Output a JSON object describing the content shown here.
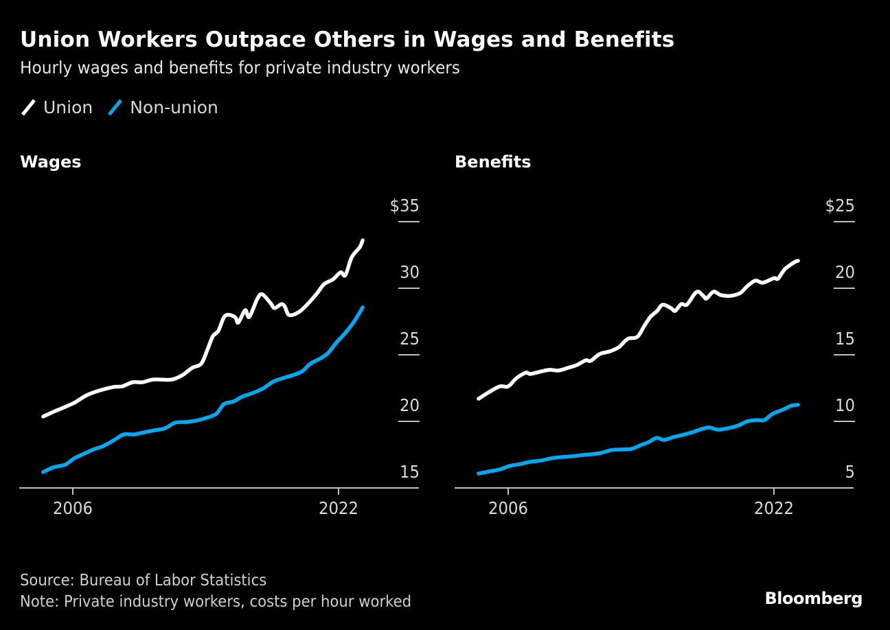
{
  "header": {
    "title": "Union Workers Outpace Others in Wages and Benefits",
    "subtitle": "Hourly wages and benefits for private industry workers"
  },
  "legend": [
    {
      "label": "Union",
      "color": "#ffffff"
    },
    {
      "label": "Non-union",
      "color": "#00a8f0"
    }
  ],
  "footer": {
    "source": "Source: Bureau of Labor Statistics",
    "note": "Note: Private industry workers, costs per hour worked",
    "brand": "Bloomberg"
  },
  "chart_data": [
    {
      "type": "line",
      "title": "Wages",
      "xlabel": "",
      "ylabel": "",
      "x_ticks": [
        2006,
        2022
      ],
      "x_tick_labels": [
        "2006",
        "2022"
      ],
      "xlim": [
        2002.8,
        2026.0
      ],
      "ylim": [
        15,
        35
      ],
      "y_ticks": [
        15,
        20,
        25,
        30,
        35
      ],
      "y_tick_labels": [
        "15",
        "20",
        "25",
        "30",
        "$35"
      ],
      "grid": false,
      "y_axis_position": "right",
      "series": [
        {
          "name": "Union",
          "color": "#ffffff",
          "x": [
            2004.22,
            2004.84,
            2005.34,
            2006.08,
            2006.83,
            2007.61,
            2008.44,
            2008.98,
            2009.6,
            2010.18,
            2010.8,
            2011.37,
            2011.95,
            2012.57,
            2013.19,
            2013.73,
            2014.1,
            2014.43,
            2014.76,
            2015.18,
            2015.76,
            2015.96,
            2016.38,
            2016.62,
            2017.12,
            2017.41,
            2017.91,
            2018.15,
            2018.57,
            2018.77,
            2019.02,
            2019.6,
            2020.14,
            2020.72,
            2021.13,
            2021.67,
            2022.12,
            2022.41,
            2022.79,
            2023.28,
            2023.45
          ],
          "values": [
            20.36,
            20.72,
            20.98,
            21.39,
            21.96,
            22.32,
            22.58,
            22.63,
            22.94,
            22.94,
            23.14,
            23.14,
            23.14,
            23.45,
            24.02,
            24.33,
            25.36,
            26.39,
            26.8,
            27.94,
            27.84,
            27.42,
            28.35,
            27.84,
            29.23,
            29.54,
            28.87,
            28.51,
            28.81,
            28.61,
            27.99,
            28.2,
            28.81,
            29.64,
            30.31,
            30.67,
            31.19,
            30.98,
            32.32,
            33.09,
            33.61
          ]
        },
        {
          "name": "Non-union",
          "color": "#00a8f0",
          "x": [
            2004.22,
            2004.84,
            2005.55,
            2006.08,
            2006.7,
            2007.24,
            2007.82,
            2008.44,
            2009.06,
            2009.68,
            2010.3,
            2010.92,
            2011.54,
            2012.16,
            2012.78,
            2013.4,
            2014.02,
            2014.64,
            2015.09,
            2015.67,
            2016.21,
            2016.79,
            2017.45,
            2018.07,
            2018.65,
            2019.19,
            2019.81,
            2020.3,
            2020.92,
            2021.38,
            2021.88,
            2022.41,
            2022.95,
            2023.45
          ],
          "values": [
            16.19,
            16.55,
            16.75,
            17.22,
            17.58,
            17.89,
            18.14,
            18.56,
            19.02,
            19.02,
            19.18,
            19.33,
            19.48,
            19.9,
            19.95,
            20.05,
            20.26,
            20.57,
            21.29,
            21.49,
            21.86,
            22.11,
            22.47,
            22.99,
            23.25,
            23.45,
            23.76,
            24.33,
            24.74,
            25.15,
            25.93,
            26.65,
            27.53,
            28.56
          ]
        }
      ]
    },
    {
      "type": "line",
      "title": "Benefits",
      "xlabel": "",
      "ylabel": "",
      "x_ticks": [
        2006,
        2022
      ],
      "x_tick_labels": [
        "2006",
        "2022"
      ],
      "xlim": [
        2002.8,
        2026.0
      ],
      "ylim": [
        5,
        25
      ],
      "y_ticks": [
        5,
        10,
        15,
        20,
        25
      ],
      "y_tick_labels": [
        "5",
        "10",
        "15",
        "20",
        "$25"
      ],
      "grid": false,
      "y_axis_position": "right",
      "series": [
        {
          "name": "Union",
          "color": "#ffffff",
          "x": [
            2004.22,
            2004.88,
            2005.5,
            2006.0,
            2006.5,
            2007.07,
            2007.32,
            2007.86,
            2008.48,
            2009.02,
            2009.6,
            2010.13,
            2010.67,
            2010.96,
            2011.5,
            2012.12,
            2012.66,
            2013.19,
            2013.77,
            2014.19,
            2014.56,
            2014.97,
            2015.3,
            2015.8,
            2016.05,
            2016.42,
            2016.75,
            2017.2,
            2017.45,
            2017.78,
            2017.95,
            2018.36,
            2018.82,
            2019.39,
            2019.97,
            2020.39,
            2020.88,
            2021.3,
            2021.75,
            2022.04,
            2022.25,
            2022.66,
            2023.24,
            2023.45
          ],
          "values": [
            11.7,
            12.22,
            12.63,
            12.63,
            13.25,
            13.66,
            13.56,
            13.71,
            13.87,
            13.82,
            14.02,
            14.23,
            14.59,
            14.54,
            15.05,
            15.26,
            15.57,
            16.19,
            16.34,
            17.16,
            17.84,
            18.3,
            18.76,
            18.51,
            18.3,
            18.81,
            18.76,
            19.54,
            19.74,
            19.38,
            19.23,
            19.74,
            19.48,
            19.43,
            19.64,
            20.15,
            20.57,
            20.41,
            20.62,
            20.77,
            20.72,
            21.44,
            21.96,
            22.06
          ]
        },
        {
          "name": "Non-union",
          "color": "#00a8f0",
          "x": [
            2004.22,
            2004.88,
            2005.5,
            2006.08,
            2006.74,
            2007.32,
            2007.98,
            2008.56,
            2009.22,
            2009.8,
            2010.46,
            2011.04,
            2011.58,
            2012.2,
            2012.82,
            2013.44,
            2013.94,
            2014.47,
            2014.93,
            2015.38,
            2015.92,
            2016.46,
            2017.08,
            2017.66,
            2018.11,
            2018.61,
            2019.23,
            2019.85,
            2020.39,
            2020.97,
            2021.42,
            2021.92,
            2022.54,
            2023.07,
            2023.45
          ],
          "values": [
            6.08,
            6.24,
            6.39,
            6.65,
            6.8,
            6.96,
            7.06,
            7.22,
            7.32,
            7.37,
            7.47,
            7.53,
            7.63,
            7.84,
            7.89,
            7.94,
            8.2,
            8.45,
            8.76,
            8.61,
            8.81,
            8.97,
            9.18,
            9.43,
            9.54,
            9.38,
            9.48,
            9.69,
            10.0,
            10.1,
            10.1,
            10.57,
            10.88,
            11.19,
            11.24
          ]
        }
      ]
    }
  ]
}
